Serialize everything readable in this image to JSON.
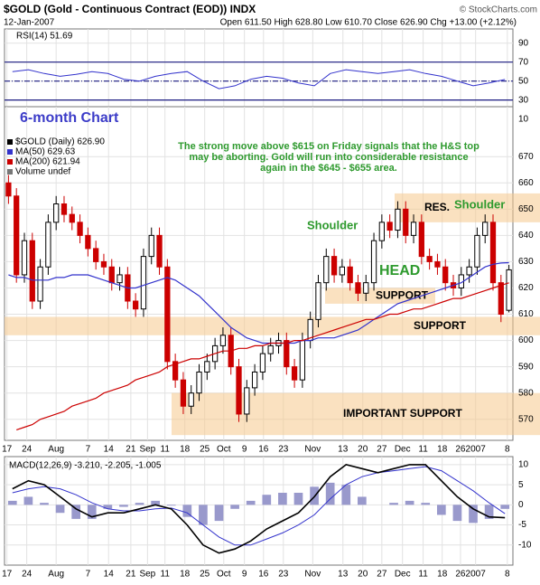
{
  "header": {
    "title": "$GOLD (Gold - Continuous Contract (EOD)) INDX",
    "date": "12-Jan-2007",
    "quote": "Open 611.50  High 628.80  Low 610.70  Close 626.90  Chg +13.00 (+2.12%)",
    "credit": "© StockCharts.com"
  },
  "chart_data": [
    {
      "type": "line",
      "label": "RSI(14) 51.69",
      "color": "#3333cc",
      "ylim": [
        23,
        105
      ],
      "yticks": [
        10,
        30,
        50,
        70,
        90
      ],
      "levels": [
        70,
        50,
        30
      ],
      "values": [
        60,
        62,
        58,
        55,
        57,
        60,
        58,
        52,
        50,
        55,
        58,
        60,
        50,
        42,
        45,
        52,
        55,
        53,
        48,
        45,
        58,
        62,
        60,
        58,
        60,
        62,
        58,
        55,
        50,
        45,
        48,
        51.69
      ]
    },
    {
      "type": "candlestick",
      "up_color": "#000000",
      "down_color": "#cc0000",
      "legend": [
        "$GOLD (Daily) 626.90",
        "MA(50) 629.63",
        "MA(200) 621.94",
        "Volume undef"
      ],
      "ylim": [
        562,
        689
      ],
      "yticks": [
        570,
        580,
        590,
        600,
        610,
        620,
        630,
        640,
        650,
        660,
        670
      ],
      "xlim": [
        0,
        64
      ],
      "xticks": [
        {
          "value": 0.3,
          "label": "17"
        },
        {
          "value": 2.8,
          "label": "24"
        },
        {
          "value": 6.5,
          "label": "Aug"
        },
        {
          "value": 10.5,
          "label": "7"
        },
        {
          "value": 13.1,
          "label": "14"
        },
        {
          "value": 15.9,
          "label": "21"
        },
        {
          "value": 18,
          "label": "Sep"
        },
        {
          "value": 20.2,
          "label": "11"
        },
        {
          "value": 22.7,
          "label": "18"
        },
        {
          "value": 25.2,
          "label": "25"
        },
        {
          "value": 27.6,
          "label": "Oct"
        },
        {
          "value": 30.2,
          "label": "9"
        },
        {
          "value": 32.6,
          "label": "16"
        },
        {
          "value": 35.1,
          "label": "23"
        },
        {
          "value": 38.8,
          "label": "Nov"
        },
        {
          "value": 42.6,
          "label": "13"
        },
        {
          "value": 45.1,
          "label": "20"
        },
        {
          "value": 47.5,
          "label": "27"
        },
        {
          "value": 50.1,
          "label": "Dec"
        },
        {
          "value": 52.7,
          "label": "11"
        },
        {
          "value": 55.1,
          "label": "18"
        },
        {
          "value": 57.4,
          "label": "26"
        },
        {
          "value": 59.3,
          "label": "2007"
        },
        {
          "value": 63.3,
          "label": "8"
        }
      ],
      "open": [
        660,
        655,
        625,
        638,
        615,
        628,
        645,
        652,
        648,
        645,
        640,
        635,
        630,
        628,
        622,
        625,
        615,
        612,
        632,
        640,
        628,
        592,
        585,
        575,
        580,
        588,
        592,
        598,
        602,
        590,
        572,
        582,
        588,
        595,
        598,
        600,
        590,
        585,
        600,
        608,
        622,
        632,
        625,
        628,
        622,
        618,
        622,
        638,
        645,
        642,
        650,
        640,
        645,
        632,
        630,
        628,
        622,
        620,
        625,
        628,
        640,
        645,
        622,
        611.5
      ],
      "high": [
        663,
        658,
        641,
        641,
        631,
        648,
        655,
        655,
        651,
        648,
        643,
        638,
        633,
        631,
        628,
        628,
        618,
        635,
        643,
        643,
        631,
        595,
        588,
        583,
        591,
        595,
        601,
        605,
        605,
        593,
        585,
        591,
        598,
        601,
        603,
        603,
        593,
        603,
        611,
        625,
        635,
        635,
        631,
        631,
        625,
        625,
        641,
        648,
        648,
        653,
        653,
        648,
        648,
        635,
        633,
        631,
        625,
        628,
        631,
        643,
        648,
        648,
        625,
        628.8
      ],
      "low": [
        652,
        622,
        622,
        612,
        612,
        625,
        642,
        645,
        642,
        637,
        632,
        627,
        625,
        619,
        619,
        612,
        609,
        609,
        629,
        625,
        589,
        582,
        572,
        572,
        577,
        585,
        589,
        595,
        587,
        569,
        569,
        579,
        585,
        592,
        595,
        587,
        582,
        582,
        597,
        605,
        619,
        622,
        622,
        619,
        615,
        615,
        619,
        635,
        639,
        639,
        637,
        637,
        629,
        627,
        625,
        619,
        617,
        617,
        622,
        625,
        637,
        619,
        607,
        610.7
      ],
      "close": [
        655,
        625,
        638,
        615,
        628,
        645,
        652,
        648,
        645,
        640,
        635,
        630,
        628,
        622,
        625,
        615,
        612,
        632,
        640,
        628,
        592,
        585,
        575,
        580,
        588,
        592,
        598,
        602,
        590,
        572,
        582,
        588,
        595,
        598,
        600,
        590,
        585,
        600,
        608,
        622,
        632,
        625,
        628,
        622,
        618,
        622,
        638,
        645,
        642,
        650,
        640,
        645,
        632,
        630,
        628,
        622,
        620,
        625,
        628,
        640,
        645,
        622,
        610,
        626.9
      ],
      "overlays": [
        {
          "color": "#3333cc",
          "values": [
            625,
            624,
            624,
            623,
            623,
            623,
            624,
            624,
            625,
            625,
            625,
            624,
            623,
            622,
            621,
            620,
            620,
            621,
            622,
            623,
            624,
            623,
            621,
            619,
            617,
            614,
            611,
            608,
            605,
            603,
            601,
            600,
            599,
            599,
            599,
            599,
            599,
            600,
            600,
            601,
            601,
            601,
            602,
            603,
            604,
            606,
            608,
            610,
            612,
            614,
            615,
            616,
            617,
            618,
            619,
            620,
            621,
            622,
            624,
            626,
            628,
            629,
            629.5,
            629.63
          ]
        },
        {
          "color": "#cc0000",
          "values": [
            null,
            566,
            567,
            568,
            570,
            571,
            572,
            573,
            575,
            576,
            577,
            578,
            580,
            581,
            582,
            583,
            585,
            586,
            587,
            588,
            590,
            591,
            592,
            593,
            593,
            594,
            595,
            596,
            596,
            597,
            597,
            598,
            598,
            599,
            599,
            599,
            600,
            600,
            601,
            602,
            603,
            604,
            605,
            606,
            607,
            608,
            608,
            609,
            610,
            610,
            611,
            612,
            612,
            613,
            614,
            615,
            616,
            616,
            617,
            618,
            619,
            620,
            621,
            621.94
          ]
        }
      ],
      "bands": [
        {
          "label": "RES.",
          "from": 645,
          "to": 656
        },
        {
          "label": "SUPPORT",
          "from": 614,
          "to": 620
        },
        {
          "label": "SUPPORT",
          "from": 602,
          "to": 609
        },
        {
          "label": "IMPORTANT SUPPORT",
          "from": 564,
          "to": 580
        }
      ],
      "annotations": {
        "period": "6-month Chart",
        "shoulder_left": "Shoulder",
        "head": "HEAD",
        "shoulder_right": "Shoulder",
        "comment": [
          "The strong move above $615 on Friday signals that the H&S top",
          "may be aborting. Gold will run into considerable resistance",
          "again in the $645 - $655 area."
        ]
      }
    },
    {
      "type": "macd",
      "label": "MACD(12,26,9) -3.210, -2.205, -1.005",
      "ylim": [
        -15,
        12
      ],
      "yticks": [
        -10,
        -5,
        0,
        5,
        10
      ],
      "macd": {
        "color": "#000000",
        "values": [
          4,
          6,
          5,
          2,
          -1,
          -3,
          -2,
          -2,
          -1,
          0,
          -1,
          -5,
          -10,
          -12,
          -11,
          -9,
          -6,
          -4,
          -2,
          2,
          7,
          10,
          9,
          8,
          9,
          10,
          10,
          6,
          2,
          -1,
          -3,
          -3.21
        ]
      },
      "signal": {
        "color": "#3333cc",
        "values": [
          3,
          4,
          4.5,
          4,
          2.5,
          0.5,
          -1,
          -1.5,
          -1.5,
          -1,
          -0.8,
          -2,
          -5,
          -8,
          -10,
          -10,
          -8.5,
          -7,
          -5,
          -2.5,
          1.5,
          5,
          7,
          8,
          8.5,
          9,
          9.5,
          8.5,
          6,
          3.5,
          0.5,
          -2.205
        ]
      },
      "histogram": {
        "color": "#9999cc",
        "values": [
          1,
          2,
          0.5,
          -2,
          -3.5,
          -3.5,
          -1,
          -0.5,
          0.5,
          1,
          -0.2,
          -3,
          -5,
          -4,
          -1,
          1,
          2.5,
          3,
          3,
          4.5,
          5.5,
          5,
          2,
          0,
          0.5,
          1,
          0.5,
          -2.5,
          -4,
          -4.5,
          -3.5,
          -1.005
        ]
      }
    }
  ]
}
